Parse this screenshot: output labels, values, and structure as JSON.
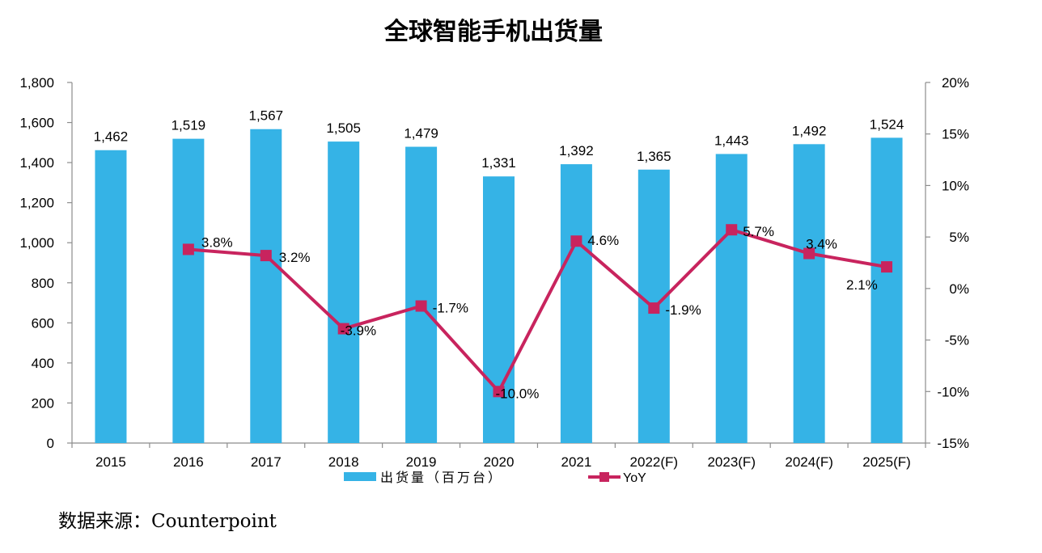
{
  "title": "全球智能手机出货量",
  "source": "数据来源：Counterpoint",
  "chart_data": {
    "type": "bar",
    "title": "全球智能手机出货量",
    "categories": [
      "2015",
      "2016",
      "2017",
      "2018",
      "2019",
      "2020",
      "2021",
      "2022(F)",
      "2023(F)",
      "2024(F)",
      "2025(F)"
    ],
    "series": [
      {
        "name": "出货量（百万台）",
        "type": "bar",
        "axis": "left",
        "color": "#35b3e6",
        "values": [
          1462,
          1519,
          1567,
          1505,
          1479,
          1331,
          1392,
          1365,
          1443,
          1492,
          1524
        ],
        "labels": [
          "1,462",
          "1,519",
          "1,567",
          "1,505",
          "1,479",
          "1,331",
          "1,392",
          "1,365",
          "1,443",
          "1,492",
          "1,524"
        ]
      },
      {
        "name": "YoY",
        "type": "line",
        "axis": "right",
        "color": "#c8245e",
        "values": [
          null,
          3.8,
          3.2,
          -3.9,
          -1.7,
          -10.0,
          4.6,
          -1.9,
          5.7,
          3.4,
          2.1
        ],
        "labels": [
          "",
          "3.8%",
          "3.2%",
          "-3.9%",
          "-1.7%",
          "-10.0%",
          "4.6%",
          "-1.9%",
          "5.7%",
          "3.4%",
          "2.1%"
        ]
      }
    ],
    "y_left": {
      "range": [
        0,
        1800
      ],
      "ticks": [
        0,
        200,
        400,
        600,
        800,
        1000,
        1200,
        1400,
        1600,
        1800
      ],
      "tick_labels": [
        "0",
        "200",
        "400",
        "600",
        "800",
        "1,000",
        "1,200",
        "1,400",
        "1,600",
        "1,800"
      ]
    },
    "y_right": {
      "range": [
        -15,
        20
      ],
      "ticks": [
        -15,
        -10,
        -5,
        0,
        5,
        10,
        15,
        20
      ],
      "tick_labels": [
        "-15%",
        "-10%",
        "-5%",
        "0%",
        "5%",
        "10%",
        "15%",
        "20%"
      ]
    },
    "grid": false,
    "legend": "bottom"
  }
}
